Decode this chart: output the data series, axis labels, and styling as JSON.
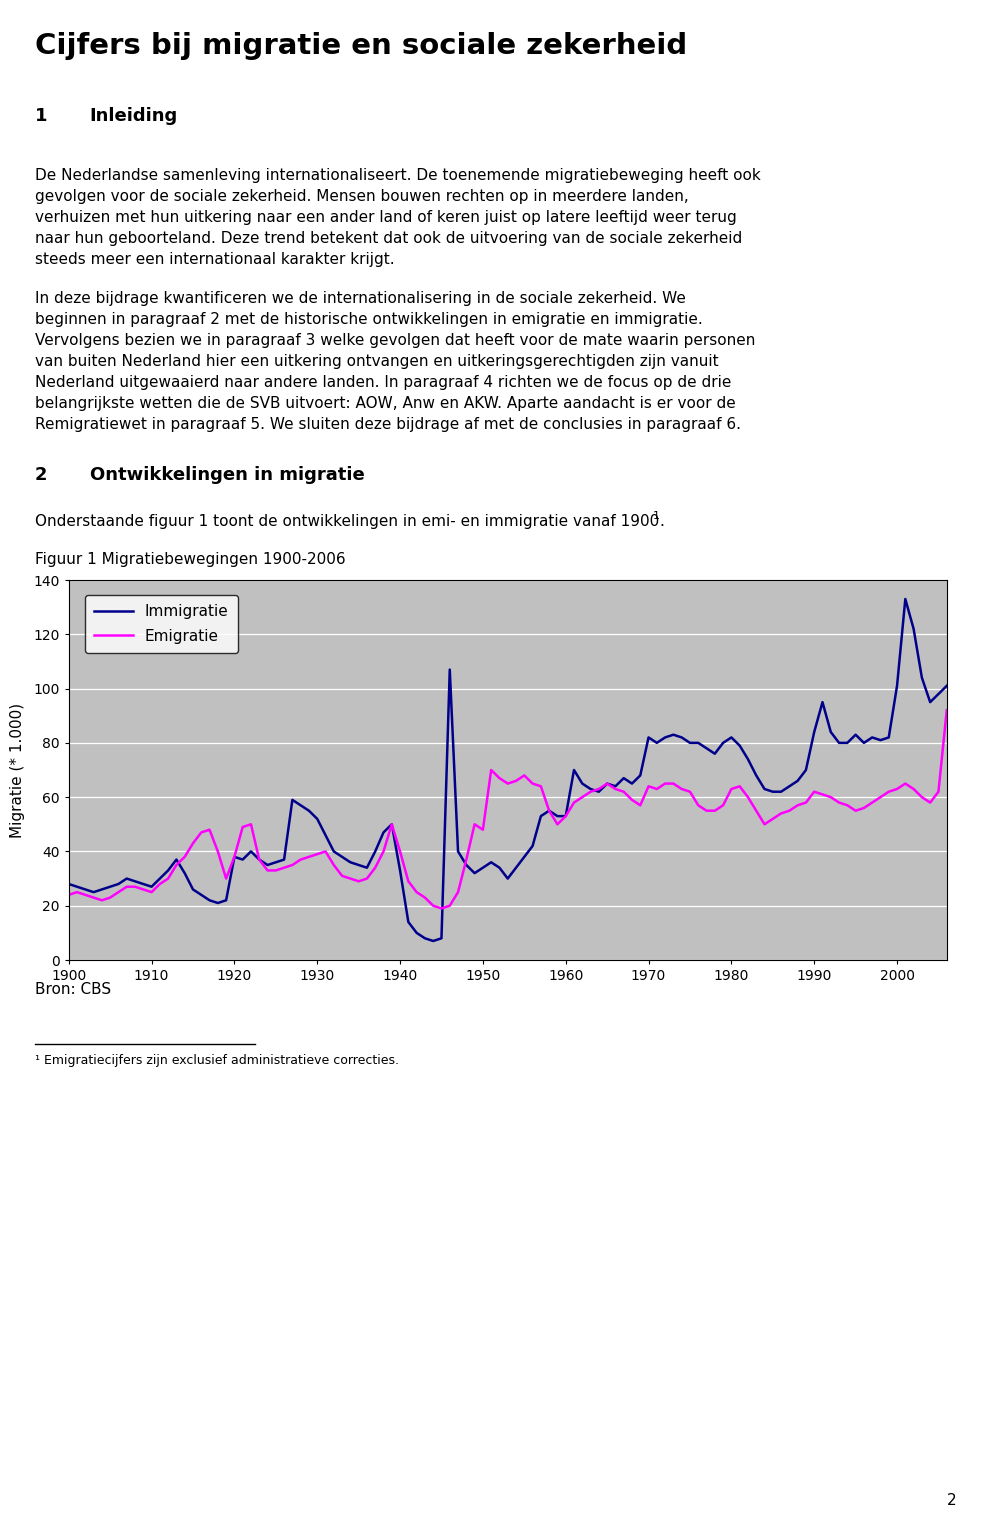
{
  "title": "Cijfers bij migratie en sociale zekerheid",
  "section1_label": "1",
  "section1_heading": "Inleiding",
  "para1_lines": [
    "De Nederlandse samenleving internationaliseert. De toenemende migratiebeweging heeft ook",
    "gevolgen voor de sociale zekerheid. Mensen bouwen rechten op in meerdere landen,",
    "verhuizen met hun uitkering naar een ander land of keren juist op latere leeftijd weer terug",
    "naar hun geboorteland. Deze trend betekent dat ook de uitvoering van de sociale zekerheid",
    "steeds meer een internationaal karakter krijgt."
  ],
  "para2_lines": [
    "In deze bijdrage kwantificeren we de internationalisering in de sociale zekerheid. We",
    "beginnen in paragraaf 2 met de historische ontwikkelingen in emigratie en immigratie.",
    "Vervolgens bezien we in paragraaf 3 welke gevolgen dat heeft voor de mate waarin personen",
    "van buiten Nederland hier een uitkering ontvangen en uitkeringsgerechtigden zijn vanuit",
    "Nederland uitgewaaierd naar andere landen. In paragraaf 4 richten we de focus op de drie",
    "belangrijkste wetten die de SVB uitvoert: AOW, Anw en AKW. Aparte aandacht is er voor de",
    "Remigratiewet in paragraaf 5. We sluiten deze bijdrage af met de conclusies in paragraaf 6."
  ],
  "section2_label": "2",
  "section2_heading": "Ontwikkelingen in migratie",
  "para3_text": "Onderstaande figuur 1 toont de ontwikkelingen in emi- en immigratie vanaf 1900",
  "fig_title": "Figuur 1 Migratiebewegingen 1900-2006",
  "ylabel": "Migratie (* 1.000)",
  "ylim": [
    0,
    140
  ],
  "yticks": [
    0,
    20,
    40,
    60,
    80,
    100,
    120,
    140
  ],
  "xlim": [
    1900,
    2006
  ],
  "xticks": [
    1900,
    1910,
    1920,
    1930,
    1940,
    1950,
    1960,
    1970,
    1980,
    1990,
    2000
  ],
  "source": "Bron: CBS",
  "footnote": "1 Emigratiecijfers zijn exclusief administratieve correcties.",
  "page_num": "2",
  "immigratie_color": "#00008B",
  "emigratie_color": "#FF00FF",
  "bg_color": "#C0C0C0",
  "legend_immigratie": "Immigratie",
  "legend_emigratie": "Emigratie",
  "years": [
    1900,
    1901,
    1902,
    1903,
    1904,
    1905,
    1906,
    1907,
    1908,
    1909,
    1910,
    1911,
    1912,
    1913,
    1914,
    1915,
    1916,
    1917,
    1918,
    1919,
    1920,
    1921,
    1922,
    1923,
    1924,
    1925,
    1926,
    1927,
    1928,
    1929,
    1930,
    1931,
    1932,
    1933,
    1934,
    1935,
    1936,
    1937,
    1938,
    1939,
    1940,
    1941,
    1942,
    1943,
    1944,
    1945,
    1946,
    1947,
    1948,
    1949,
    1950,
    1951,
    1952,
    1953,
    1954,
    1955,
    1956,
    1957,
    1958,
    1959,
    1960,
    1961,
    1962,
    1963,
    1964,
    1965,
    1966,
    1967,
    1968,
    1969,
    1970,
    1971,
    1972,
    1973,
    1974,
    1975,
    1976,
    1977,
    1978,
    1979,
    1980,
    1981,
    1982,
    1983,
    1984,
    1985,
    1986,
    1987,
    1988,
    1989,
    1990,
    1991,
    1992,
    1993,
    1994,
    1995,
    1996,
    1997,
    1998,
    1999,
    2000,
    2001,
    2002,
    2003,
    2004,
    2005,
    2006
  ],
  "immigratie": [
    28,
    27,
    26,
    25,
    26,
    27,
    28,
    30,
    29,
    28,
    27,
    30,
    33,
    37,
    32,
    26,
    24,
    22,
    21,
    22,
    38,
    37,
    40,
    37,
    35,
    36,
    37,
    59,
    57,
    55,
    52,
    46,
    40,
    38,
    36,
    35,
    34,
    40,
    47,
    50,
    33,
    14,
    10,
    8,
    7,
    8,
    107,
    40,
    35,
    32,
    34,
    36,
    34,
    30,
    34,
    38,
    42,
    53,
    55,
    53,
    53,
    70,
    65,
    63,
    62,
    65,
    64,
    67,
    65,
    68,
    82,
    80,
    82,
    83,
    82,
    80,
    80,
    78,
    76,
    80,
    82,
    79,
    74,
    68,
    63,
    62,
    62,
    64,
    66,
    70,
    84,
    95,
    84,
    80,
    80,
    83,
    80,
    82,
    81,
    82,
    101,
    133,
    122,
    104,
    95,
    98,
    101
  ],
  "emigratie": [
    24,
    25,
    24,
    23,
    22,
    23,
    25,
    27,
    27,
    26,
    25,
    28,
    30,
    35,
    38,
    43,
    47,
    48,
    40,
    30,
    38,
    49,
    50,
    37,
    33,
    33,
    34,
    35,
    37,
    38,
    39,
    40,
    35,
    31,
    30,
    29,
    30,
    34,
    40,
    50,
    40,
    29,
    25,
    23,
    20,
    19,
    20,
    25,
    37,
    50,
    48,
    70,
    67,
    65,
    66,
    68,
    65,
    64,
    55,
    50,
    53,
    58,
    60,
    62,
    63,
    65,
    63,
    62,
    59,
    57,
    64,
    63,
    65,
    65,
    63,
    62,
    57,
    55,
    55,
    57,
    63,
    64,
    60,
    55,
    50,
    52,
    54,
    55,
    57,
    58,
    62,
    61,
    60,
    58,
    57,
    55,
    56,
    58,
    60,
    62,
    63,
    65,
    63,
    60,
    58,
    62,
    92
  ]
}
